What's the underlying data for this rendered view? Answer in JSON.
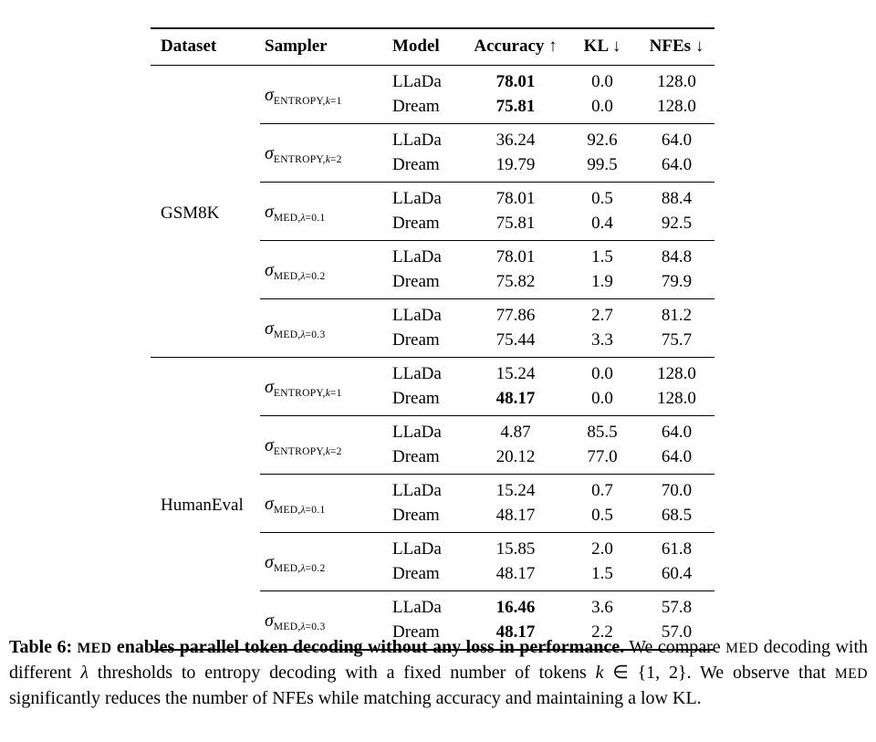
{
  "page": {
    "background": "#ffffff",
    "text_color": "#000000"
  },
  "table": {
    "headers": [
      {
        "label": "Dataset"
      },
      {
        "label": "Sampler"
      },
      {
        "label": "Model"
      },
      {
        "label": "Accuracy ↑"
      },
      {
        "label": "KL ↓"
      },
      {
        "label": "NFEs ↓"
      }
    ],
    "groups": [
      {
        "dataset": "GSM8K",
        "blocks": [
          {
            "sampler": {
              "sigma": "σ",
              "caps": "ENTROPY,",
              "variable": "k",
              "value": "=1"
            },
            "rows": [
              {
                "model": "LLaDa",
                "accuracy": "78.01",
                "accuracy_bold": true,
                "kl": "0.0",
                "nfes": "128.0"
              },
              {
                "model": "Dream",
                "accuracy": "75.81",
                "accuracy_bold": true,
                "kl": "0.0",
                "nfes": "128.0"
              }
            ]
          },
          {
            "sampler": {
              "sigma": "σ",
              "caps": "ENTROPY,",
              "variable": "k",
              "value": "=2"
            },
            "rows": [
              {
                "model": "LLaDa",
                "accuracy": "36.24",
                "accuracy_bold": false,
                "kl": "92.6",
                "nfes": "64.0"
              },
              {
                "model": "Dream",
                "accuracy": "19.79",
                "accuracy_bold": false,
                "kl": "99.5",
                "nfes": "64.0"
              }
            ]
          },
          {
            "sampler": {
              "sigma": "σ",
              "caps": "MED,",
              "variable": "λ",
              "value": "=0.1"
            },
            "rows": [
              {
                "model": "LLaDa",
                "accuracy": "78.01",
                "accuracy_bold": false,
                "kl": "0.5",
                "nfes": "88.4"
              },
              {
                "model": "Dream",
                "accuracy": "75.81",
                "accuracy_bold": false,
                "kl": "0.4",
                "nfes": "92.5"
              }
            ]
          },
          {
            "sampler": {
              "sigma": "σ",
              "caps": "MED,",
              "variable": "λ",
              "value": "=0.2"
            },
            "rows": [
              {
                "model": "LLaDa",
                "accuracy": "78.01",
                "accuracy_bold": false,
                "kl": "1.5",
                "nfes": "84.8"
              },
              {
                "model": "Dream",
                "accuracy": "75.82",
                "accuracy_bold": false,
                "kl": "1.9",
                "nfes": "79.9"
              }
            ]
          },
          {
            "sampler": {
              "sigma": "σ",
              "caps": "MED,",
              "variable": "λ",
              "value": "=0.3"
            },
            "rows": [
              {
                "model": "LLaDa",
                "accuracy": "77.86",
                "accuracy_bold": false,
                "kl": "2.7",
                "nfes": "81.2"
              },
              {
                "model": "Dream",
                "accuracy": "75.44",
                "accuracy_bold": false,
                "kl": "3.3",
                "nfes": "75.7"
              }
            ]
          }
        ]
      },
      {
        "dataset": "HumanEval",
        "blocks": [
          {
            "sampler": {
              "sigma": "σ",
              "caps": "ENTROPY,",
              "variable": "k",
              "value": "=1"
            },
            "rows": [
              {
                "model": "LLaDa",
                "accuracy": "15.24",
                "accuracy_bold": false,
                "kl": "0.0",
                "nfes": "128.0"
              },
              {
                "model": "Dream",
                "accuracy": "48.17",
                "accuracy_bold": true,
                "kl": "0.0",
                "nfes": "128.0"
              }
            ]
          },
          {
            "sampler": {
              "sigma": "σ",
              "caps": "ENTROPY,",
              "variable": "k",
              "value": "=2"
            },
            "rows": [
              {
                "model": "LLaDa",
                "accuracy": "4.87",
                "accuracy_bold": false,
                "kl": "85.5",
                "nfes": "64.0"
              },
              {
                "model": "Dream",
                "accuracy": "20.12",
                "accuracy_bold": false,
                "kl": "77.0",
                "nfes": "64.0"
              }
            ]
          },
          {
            "sampler": {
              "sigma": "σ",
              "caps": "MED,",
              "variable": "λ",
              "value": "=0.1"
            },
            "rows": [
              {
                "model": "LLaDa",
                "accuracy": "15.24",
                "accuracy_bold": false,
                "kl": "0.7",
                "nfes": "70.0"
              },
              {
                "model": "Dream",
                "accuracy": "48.17",
                "accuracy_bold": false,
                "kl": "0.5",
                "nfes": "68.5"
              }
            ]
          },
          {
            "sampler": {
              "sigma": "σ",
              "caps": "MED,",
              "variable": "λ",
              "value": "=0.2"
            },
            "rows": [
              {
                "model": "LLaDa",
                "accuracy": "15.85",
                "accuracy_bold": false,
                "kl": "2.0",
                "nfes": "61.8"
              },
              {
                "model": "Dream",
                "accuracy": "48.17",
                "accuracy_bold": false,
                "kl": "1.5",
                "nfes": "60.4"
              }
            ]
          },
          {
            "sampler": {
              "sigma": "σ",
              "caps": "MED,",
              "variable": "λ",
              "value": "=0.3"
            },
            "rows": [
              {
                "model": "LLaDa",
                "accuracy": "16.46",
                "accuracy_bold": true,
                "kl": "3.6",
                "nfes": "57.8"
              },
              {
                "model": "Dream",
                "accuracy": "48.17",
                "accuracy_bold": true,
                "kl": "2.2",
                "nfes": "57.0"
              }
            ]
          }
        ]
      }
    ]
  },
  "caption": {
    "segments": [
      {
        "text": "Table 6: ",
        "style": "bold"
      },
      {
        "text": "MED",
        "style": "bold-smallcaps"
      },
      {
        "text": " enables parallel token decoding without any loss in performance.",
        "style": "bold"
      },
      {
        "text": " We compare ",
        "style": "regular"
      },
      {
        "text": "MED",
        "style": "smallcaps"
      },
      {
        "text": " decoding with different ",
        "style": "regular"
      },
      {
        "text": "λ",
        "style": "italic"
      },
      {
        "text": " thresholds to entropy decoding with a fixed number of tokens ",
        "style": "regular"
      },
      {
        "text": "k",
        "style": "italic"
      },
      {
        "text": " ∈ {1, 2}. We observe that ",
        "style": "regular"
      },
      {
        "text": "MED",
        "style": "smallcaps"
      },
      {
        "text": " significantly reduces the number of NFEs while matching accuracy and maintaining a low KL.",
        "style": "regular"
      }
    ]
  }
}
